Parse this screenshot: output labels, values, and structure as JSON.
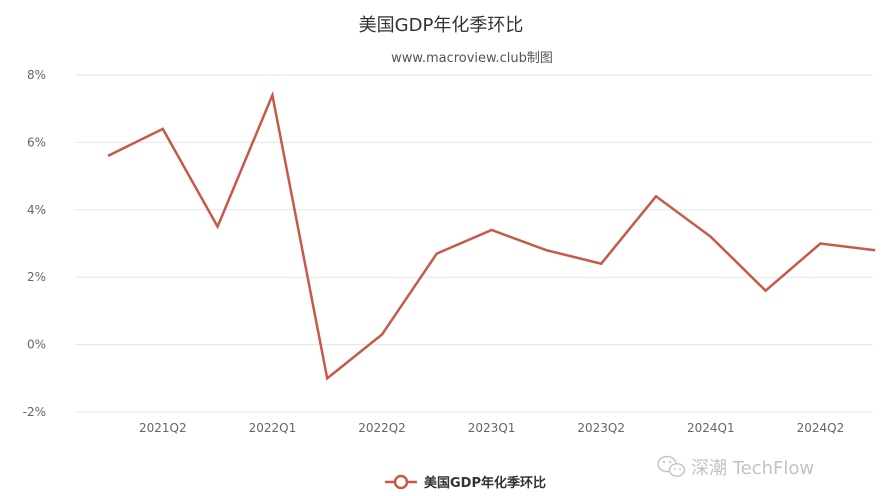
{
  "chart_data": {
    "type": "line",
    "title": "美国GDP年化季环比",
    "subtitle": "www.macroview.club制图",
    "xlabel": "",
    "ylabel": "",
    "ylim": [
      -2,
      8
    ],
    "y_ticks": [
      "8%",
      "6%",
      "4%",
      "2%",
      "0%",
      "-2%"
    ],
    "x_tick_labels": [
      "2021Q2",
      "2022Q1",
      "2022Q2",
      "2023Q1",
      "2023Q2",
      "2024Q1",
      "2024Q2"
    ],
    "grid": "horizontal",
    "legend_position": "bottom",
    "series": [
      {
        "name": "美国GDP年化季环比",
        "color": "#c8584a",
        "values": [
          5.6,
          6.4,
          3.5,
          7.4,
          -1.0,
          0.3,
          2.7,
          3.4,
          2.8,
          2.4,
          4.4,
          3.2,
          1.6,
          3.0,
          2.8
        ]
      }
    ]
  },
  "watermark": {
    "text": "深潮 TechFlow",
    "icon": "wechat-icon"
  }
}
